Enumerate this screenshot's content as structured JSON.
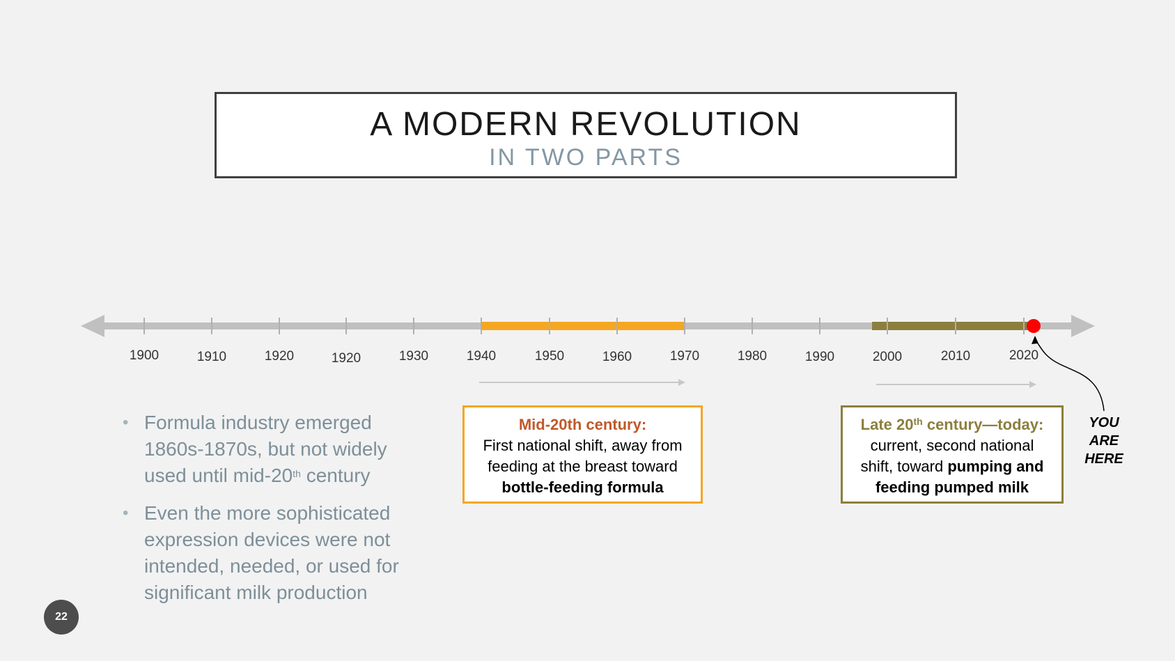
{
  "title": {
    "main": "A MODERN REVOLUTION",
    "sub": "IN TWO PARTS"
  },
  "timeline": {
    "tick_labels": [
      "1900",
      "1910",
      "1920",
      "1920",
      "1930",
      "1940",
      "1950",
      "1960",
      "1970",
      "1980",
      "1990",
      "2000",
      "2010",
      "2020"
    ],
    "periods": [
      {
        "name": "mid-20th-century",
        "start_label": "1940",
        "end_label": "1970",
        "color": "#f5a623"
      },
      {
        "name": "late-20th-century-today",
        "start_label": "2000",
        "end_label": "2020",
        "color": "#8c7f3e"
      }
    ],
    "marker_color": "#ff0000",
    "axis_color": "#c0c0c0"
  },
  "bullets": [
    {
      "text": "Formula industry emerged 1860s-1870s, but not widely used until mid-20",
      "sup": "th",
      "tail": " century"
    },
    {
      "text": "Even the more sophisticated expression devices were not intended, needed, or used for significant milk production",
      "sup": "",
      "tail": ""
    }
  ],
  "callout_mid": {
    "heading": "Mid-20th century:",
    "line1": "First national shift, away from",
    "line2": "feeding at the breast toward",
    "bold": "bottle-feeding formula"
  },
  "callout_late": {
    "heading_a": "Late 20",
    "heading_sup": "th",
    "heading_b": " century—today:",
    "line1": "current, second national",
    "line2_plain": "shift, toward ",
    "line2_bold": "pumping and",
    "line3_bold": "feeding pumped milk"
  },
  "you_are_here": [
    "YOU",
    "ARE",
    "HERE"
  ],
  "page_number": "22"
}
